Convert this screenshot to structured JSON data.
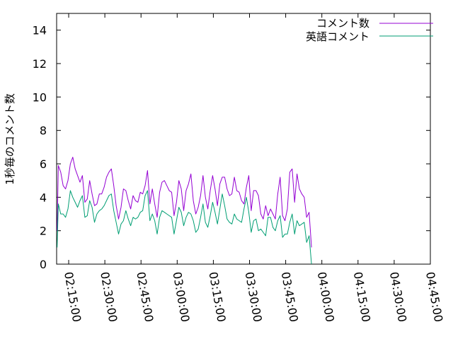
{
  "chart_data": {
    "type": "line",
    "title": "",
    "xlabel": "",
    "ylabel": "1秒毎のコメント数",
    "ylim": [
      0,
      15
    ],
    "yticks": [
      0,
      2,
      4,
      6,
      8,
      10,
      12,
      14
    ],
    "xlim_minutes": [
      -5,
      150
    ],
    "xtick_labels": [
      "02:15:00",
      "02:30:00",
      "02:45:00",
      "03:00:00",
      "03:15:00",
      "03:30:00",
      "03:45:00",
      "04:00:00",
      "04:15:00",
      "04:30:00",
      "04:45:00"
    ],
    "xtick_minutes": [
      0,
      15,
      30,
      45,
      60,
      75,
      90,
      105,
      120,
      135,
      150
    ],
    "grid": false,
    "legend_position": "top-right",
    "x_minutes": [
      -5.0,
      -4.3,
      -3.5,
      -2.6,
      -1.7,
      -0.9,
      0.0,
      0.9,
      1.7,
      2.6,
      3.5,
      4.3,
      5.2,
      6.1,
      6.9,
      7.8,
      8.7,
      9.5,
      10.4,
      11.3,
      12.1,
      13.0,
      13.9,
      14.7,
      15.6,
      16.5,
      17.3,
      18.2,
      19.1,
      19.9,
      20.8,
      21.7,
      22.5,
      23.4,
      24.3,
      25.1,
      26.0,
      26.9,
      27.7,
      28.6,
      29.5,
      30.3,
      31.2,
      32.1,
      32.9,
      33.8,
      34.7,
      35.5,
      36.4,
      37.3,
      38.1,
      39.0,
      39.9,
      40.7,
      41.6,
      42.5,
      43.3,
      44.2,
      45.1,
      45.9,
      46.8,
      47.7,
      48.5,
      49.4,
      50.3,
      51.1,
      52.0,
      52.9,
      53.7,
      54.6,
      55.5,
      56.3,
      57.2,
      58.1,
      58.9,
      59.8,
      60.7,
      61.5,
      62.4,
      63.3,
      64.1,
      65.0,
      65.9,
      66.7,
      67.6,
      68.5,
      69.3,
      70.2,
      71.1,
      71.9,
      72.8,
      73.7,
      74.5,
      75.4,
      76.3,
      77.1,
      78.0,
      78.9,
      79.7,
      80.6,
      81.5,
      82.3,
      83.2,
      84.1,
      84.9,
      85.8,
      86.7,
      87.5,
      88.4,
      89.3,
      90.1,
      91.0,
      91.9,
      92.7,
      93.6,
      94.5,
      95.3,
      96.2,
      97.1,
      97.9,
      98.8,
      99.7,
      100.5,
      101.4,
      102.3,
      103.1,
      104.0,
      104.9,
      105.7,
      106.6,
      107.5,
      108.3,
      109.2,
      110.1,
      110.9,
      111.8,
      112.7,
      113.5,
      114.4,
      115.3,
      116.1,
      117.0,
      117.9,
      118.7,
      119.6,
      120.5,
      121.3,
      122.2,
      123.1,
      123.9,
      124.8,
      125.7,
      126.5,
      127.4,
      128.3,
      129.1,
      130.0,
      130.9,
      131.7,
      132.6,
      133.5,
      134.3,
      135.2,
      136.1,
      136.9,
      137.8,
      138.7,
      139.5,
      140.4,
      141.3,
      142.1,
      143.0,
      143.9,
      144.7,
      145.6,
      146.5,
      147.3,
      148.2,
      149.1,
      149.9
    ],
    "series": [
      {
        "name": "コメント数",
        "color": "#9400d3",
        "points": [
          [
            -4.8,
            2.0
          ],
          [
            -4.3,
            5.9
          ],
          [
            -3.3,
            5.5
          ],
          [
            -2.3,
            4.7
          ],
          [
            -1.3,
            4.5
          ],
          [
            -0.3,
            5.0
          ],
          [
            0.7,
            6.0
          ],
          [
            1.7,
            6.4
          ],
          [
            2.7,
            5.7
          ],
          [
            3.7,
            5.3
          ],
          [
            4.7,
            4.9
          ],
          [
            5.7,
            5.3
          ],
          [
            6.7,
            3.7
          ],
          [
            7.7,
            3.9
          ],
          [
            8.7,
            5.0
          ],
          [
            9.7,
            4.2
          ],
          [
            10.7,
            3.5
          ],
          [
            11.7,
            3.6
          ],
          [
            12.7,
            4.2
          ],
          [
            13.7,
            4.2
          ],
          [
            14.7,
            4.6
          ],
          [
            15.7,
            5.2
          ],
          [
            16.7,
            5.5
          ],
          [
            17.7,
            5.7
          ],
          [
            18.7,
            4.7
          ],
          [
            19.7,
            3.5
          ],
          [
            20.7,
            2.7
          ],
          [
            21.7,
            3.4
          ],
          [
            22.7,
            4.5
          ],
          [
            23.7,
            4.4
          ],
          [
            24.7,
            3.8
          ],
          [
            25.7,
            3.3
          ],
          [
            26.7,
            4.1
          ],
          [
            27.7,
            3.8
          ],
          [
            28.7,
            3.7
          ],
          [
            29.7,
            4.3
          ],
          [
            30.7,
            4.2
          ],
          [
            31.7,
            4.7
          ],
          [
            32.7,
            5.6
          ],
          [
            33.7,
            3.6
          ],
          [
            34.7,
            4.5
          ],
          [
            35.7,
            3.6
          ],
          [
            36.7,
            2.8
          ],
          [
            37.7,
            4.3
          ],
          [
            38.7,
            4.9
          ],
          [
            39.7,
            5.0
          ],
          [
            40.7,
            4.7
          ],
          [
            41.7,
            4.4
          ],
          [
            42.7,
            4.3
          ],
          [
            43.7,
            2.9
          ],
          [
            44.7,
            3.7
          ],
          [
            45.7,
            5.0
          ],
          [
            46.7,
            4.5
          ],
          [
            47.7,
            3.2
          ],
          [
            48.7,
            4.4
          ],
          [
            49.7,
            4.8
          ],
          [
            50.7,
            5.4
          ],
          [
            51.7,
            3.8
          ],
          [
            52.7,
            3.0
          ],
          [
            53.7,
            3.4
          ],
          [
            54.7,
            4.1
          ],
          [
            55.7,
            5.3
          ],
          [
            56.7,
            4.0
          ],
          [
            57.7,
            3.3
          ],
          [
            58.7,
            4.4
          ],
          [
            59.7,
            5.3
          ],
          [
            60.7,
            4.5
          ],
          [
            61.7,
            3.5
          ],
          [
            62.7,
            4.8
          ],
          [
            63.7,
            5.2
          ],
          [
            64.7,
            5.2
          ],
          [
            65.7,
            4.5
          ],
          [
            66.7,
            4.1
          ],
          [
            67.7,
            4.2
          ],
          [
            68.7,
            5.2
          ],
          [
            69.7,
            4.4
          ],
          [
            70.7,
            4.3
          ],
          [
            71.7,
            3.8
          ],
          [
            72.7,
            3.6
          ],
          [
            73.7,
            4.6
          ],
          [
            74.7,
            5.3
          ],
          [
            75.7,
            3.2
          ],
          [
            76.7,
            4.4
          ],
          [
            77.7,
            4.4
          ],
          [
            78.7,
            4.1
          ],
          [
            79.7,
            3.0
          ],
          [
            80.7,
            2.7
          ],
          [
            81.7,
            3.5
          ],
          [
            82.7,
            2.9
          ],
          [
            83.7,
            3.3
          ],
          [
            84.7,
            3.0
          ],
          [
            85.7,
            2.7
          ],
          [
            86.7,
            4.2
          ],
          [
            87.7,
            5.2
          ],
          [
            88.7,
            2.9
          ],
          [
            89.7,
            2.6
          ],
          [
            90.7,
            3.3
          ],
          [
            91.7,
            5.5
          ],
          [
            92.7,
            5.7
          ],
          [
            93.7,
            3.7
          ],
          [
            94.7,
            5.4
          ],
          [
            95.7,
            4.5
          ],
          [
            96.7,
            4.2
          ],
          [
            97.7,
            4.0
          ],
          [
            98.7,
            2.8
          ],
          [
            99.7,
            3.1
          ],
          [
            100.7,
            1.0
          ]
        ]
      },
      {
        "name": "英語コメント",
        "color": "#009e73",
        "points": [
          [
            -4.8,
            1.0
          ],
          [
            -4.3,
            3.6
          ],
          [
            -3.3,
            3.0
          ],
          [
            -2.3,
            3.0
          ],
          [
            -1.3,
            2.8
          ],
          [
            -0.3,
            3.3
          ],
          [
            0.7,
            4.4
          ],
          [
            1.7,
            4.0
          ],
          [
            2.7,
            3.7
          ],
          [
            3.7,
            3.4
          ],
          [
            4.7,
            3.8
          ],
          [
            5.7,
            4.1
          ],
          [
            6.7,
            2.8
          ],
          [
            7.7,
            2.9
          ],
          [
            8.7,
            3.8
          ],
          [
            9.7,
            3.4
          ],
          [
            10.7,
            2.5
          ],
          [
            11.7,
            3.0
          ],
          [
            12.7,
            3.2
          ],
          [
            13.7,
            3.3
          ],
          [
            14.7,
            3.5
          ],
          [
            15.7,
            3.8
          ],
          [
            16.7,
            4.1
          ],
          [
            17.7,
            4.2
          ],
          [
            18.7,
            3.2
          ],
          [
            19.7,
            2.5
          ],
          [
            20.7,
            1.8
          ],
          [
            21.7,
            2.4
          ],
          [
            22.7,
            2.6
          ],
          [
            23.7,
            3.2
          ],
          [
            24.7,
            2.7
          ],
          [
            25.7,
            2.3
          ],
          [
            26.7,
            2.8
          ],
          [
            27.7,
            2.7
          ],
          [
            28.7,
            2.8
          ],
          [
            29.7,
            3.1
          ],
          [
            30.7,
            3.2
          ],
          [
            31.7,
            4.1
          ],
          [
            32.7,
            4.4
          ],
          [
            33.7,
            2.6
          ],
          [
            34.7,
            3.0
          ],
          [
            35.7,
            2.6
          ],
          [
            36.7,
            1.8
          ],
          [
            37.7,
            2.8
          ],
          [
            38.7,
            3.2
          ],
          [
            39.7,
            3.1
          ],
          [
            40.7,
            3.0
          ],
          [
            41.7,
            2.9
          ],
          [
            42.7,
            2.8
          ],
          [
            43.7,
            1.8
          ],
          [
            44.7,
            2.6
          ],
          [
            45.7,
            3.4
          ],
          [
            46.7,
            3.1
          ],
          [
            47.7,
            2.3
          ],
          [
            48.7,
            2.8
          ],
          [
            49.7,
            3.1
          ],
          [
            50.7,
            3.0
          ],
          [
            51.7,
            2.6
          ],
          [
            52.7,
            1.9
          ],
          [
            53.7,
            2.1
          ],
          [
            54.7,
            2.8
          ],
          [
            55.7,
            3.6
          ],
          [
            56.7,
            2.5
          ],
          [
            57.7,
            2.2
          ],
          [
            58.7,
            2.9
          ],
          [
            59.7,
            3.7
          ],
          [
            60.7,
            3.1
          ],
          [
            61.7,
            2.4
          ],
          [
            62.7,
            3.3
          ],
          [
            63.7,
            4.2
          ],
          [
            64.7,
            3.5
          ],
          [
            65.7,
            2.7
          ],
          [
            66.7,
            2.5
          ],
          [
            67.7,
            2.4
          ],
          [
            68.7,
            3.0
          ],
          [
            69.7,
            2.7
          ],
          [
            70.7,
            2.6
          ],
          [
            71.7,
            2.5
          ],
          [
            72.7,
            3.3
          ],
          [
            73.7,
            4.0
          ],
          [
            74.7,
            3.1
          ],
          [
            75.7,
            1.9
          ],
          [
            76.7,
            2.6
          ],
          [
            77.7,
            2.7
          ],
          [
            78.7,
            2.0
          ],
          [
            79.7,
            2.1
          ],
          [
            80.7,
            1.9
          ],
          [
            81.7,
            1.7
          ],
          [
            82.7,
            2.8
          ],
          [
            83.7,
            2.8
          ],
          [
            84.7,
            2.2
          ],
          [
            85.7,
            2.0
          ],
          [
            86.7,
            2.6
          ],
          [
            87.7,
            2.9
          ],
          [
            88.7,
            1.6
          ],
          [
            89.7,
            1.8
          ],
          [
            90.7,
            1.8
          ],
          [
            91.7,
            2.5
          ],
          [
            92.7,
            3.0
          ],
          [
            93.7,
            1.8
          ],
          [
            94.7,
            2.6
          ],
          [
            95.7,
            2.3
          ],
          [
            96.7,
            2.4
          ],
          [
            97.7,
            2.5
          ],
          [
            98.7,
            1.3
          ],
          [
            99.7,
            1.7
          ],
          [
            100.7,
            0.0
          ]
        ]
      }
    ]
  }
}
